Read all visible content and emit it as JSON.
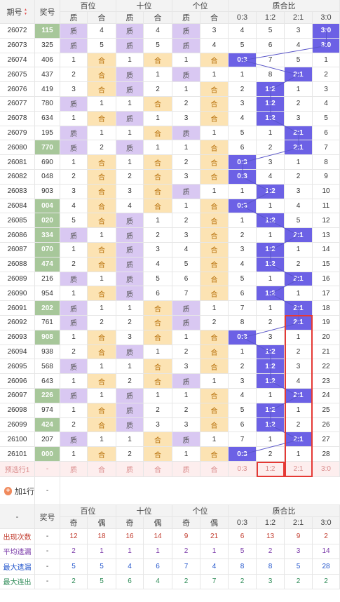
{
  "header": {
    "period": "期号",
    "draw": "奖号",
    "groups": [
      "百位",
      "十位",
      "个位",
      "质合比"
    ],
    "sub": [
      "质",
      "合",
      "质",
      "合",
      "质",
      "合",
      "0:3",
      "1:2",
      "2:1",
      "3:0"
    ]
  },
  "rows": [
    {
      "p": "26072",
      "d": "115",
      "dh": true,
      "c": [
        {
          "t": "质",
          "s": "zhi"
        },
        {
          "t": "4"
        },
        {
          "t": "质",
          "s": "zhi"
        },
        {
          "t": "4"
        },
        {
          "t": "质",
          "s": "zhi"
        },
        {
          "t": "3"
        },
        {
          "t": "4"
        },
        {
          "t": "5"
        },
        {
          "t": "3"
        },
        {
          "t": "3:0",
          "s": "hit"
        }
      ]
    },
    {
      "p": "26073",
      "d": "325",
      "dh": false,
      "c": [
        {
          "t": "质",
          "s": "zhi"
        },
        {
          "t": "5"
        },
        {
          "t": "质",
          "s": "zhi"
        },
        {
          "t": "5"
        },
        {
          "t": "质",
          "s": "zhi"
        },
        {
          "t": "4"
        },
        {
          "t": "5"
        },
        {
          "t": "6"
        },
        {
          "t": "4"
        },
        {
          "t": "3:0",
          "s": "hit"
        }
      ]
    },
    {
      "p": "26074",
      "d": "406",
      "dh": false,
      "c": [
        {
          "t": "1"
        },
        {
          "t": "合",
          "s": "he"
        },
        {
          "t": "1"
        },
        {
          "t": "合",
          "s": "he"
        },
        {
          "t": "1"
        },
        {
          "t": "合",
          "s": "he"
        },
        {
          "t": "0:3",
          "s": "hit"
        },
        {
          "t": "7"
        },
        {
          "t": "5"
        },
        {
          "t": "1"
        }
      ]
    },
    {
      "p": "26075",
      "d": "437",
      "dh": false,
      "c": [
        {
          "t": "2"
        },
        {
          "t": "合",
          "s": "he"
        },
        {
          "t": "质",
          "s": "zhi"
        },
        {
          "t": "1"
        },
        {
          "t": "质",
          "s": "zhi"
        },
        {
          "t": "1"
        },
        {
          "t": "1"
        },
        {
          "t": "8"
        },
        {
          "t": "2:1",
          "s": "hit"
        },
        {
          "t": "2"
        }
      ]
    },
    {
      "p": "26076",
      "d": "419",
      "dh": false,
      "c": [
        {
          "t": "3"
        },
        {
          "t": "合",
          "s": "he"
        },
        {
          "t": "质",
          "s": "zhi"
        },
        {
          "t": "2"
        },
        {
          "t": "1"
        },
        {
          "t": "合",
          "s": "he"
        },
        {
          "t": "2"
        },
        {
          "t": "1:2",
          "s": "hit"
        },
        {
          "t": "1"
        },
        {
          "t": "3"
        }
      ]
    },
    {
      "p": "26077",
      "d": "780",
      "dh": false,
      "c": [
        {
          "t": "质",
          "s": "zhi"
        },
        {
          "t": "1"
        },
        {
          "t": "1"
        },
        {
          "t": "合",
          "s": "he"
        },
        {
          "t": "2"
        },
        {
          "t": "合",
          "s": "he"
        },
        {
          "t": "3"
        },
        {
          "t": "1:2",
          "s": "hit"
        },
        {
          "t": "2"
        },
        {
          "t": "4"
        }
      ]
    },
    {
      "p": "26078",
      "d": "634",
      "dh": false,
      "c": [
        {
          "t": "1"
        },
        {
          "t": "合",
          "s": "he"
        },
        {
          "t": "质",
          "s": "zhi"
        },
        {
          "t": "1"
        },
        {
          "t": "3"
        },
        {
          "t": "合",
          "s": "he"
        },
        {
          "t": "4"
        },
        {
          "t": "1:2",
          "s": "hit"
        },
        {
          "t": "3"
        },
        {
          "t": "5"
        }
      ]
    },
    {
      "p": "26079",
      "d": "195",
      "dh": false,
      "c": [
        {
          "t": "质",
          "s": "zhi"
        },
        {
          "t": "1"
        },
        {
          "t": "1"
        },
        {
          "t": "合",
          "s": "he"
        },
        {
          "t": "质",
          "s": "zhi"
        },
        {
          "t": "1"
        },
        {
          "t": "5"
        },
        {
          "t": "1"
        },
        {
          "t": "2:1",
          "s": "hit"
        },
        {
          "t": "6"
        }
      ]
    },
    {
      "p": "26080",
      "d": "770",
      "dh": true,
      "c": [
        {
          "t": "质",
          "s": "zhi"
        },
        {
          "t": "2"
        },
        {
          "t": "质",
          "s": "zhi"
        },
        {
          "t": "1"
        },
        {
          "t": "1"
        },
        {
          "t": "合",
          "s": "he"
        },
        {
          "t": "6"
        },
        {
          "t": "2"
        },
        {
          "t": "2:1",
          "s": "hit"
        },
        {
          "t": "7"
        }
      ]
    },
    {
      "p": "26081",
      "d": "690",
      "dh": false,
      "c": [
        {
          "t": "1"
        },
        {
          "t": "合",
          "s": "he"
        },
        {
          "t": "1"
        },
        {
          "t": "合",
          "s": "he"
        },
        {
          "t": "2"
        },
        {
          "t": "合",
          "s": "he"
        },
        {
          "t": "0:3",
          "s": "hit"
        },
        {
          "t": "3"
        },
        {
          "t": "1"
        },
        {
          "t": "8"
        }
      ]
    },
    {
      "p": "26082",
      "d": "048",
      "dh": false,
      "c": [
        {
          "t": "2"
        },
        {
          "t": "合",
          "s": "he"
        },
        {
          "t": "2"
        },
        {
          "t": "合",
          "s": "he"
        },
        {
          "t": "3"
        },
        {
          "t": "合",
          "s": "he"
        },
        {
          "t": "0:3",
          "s": "hit"
        },
        {
          "t": "4"
        },
        {
          "t": "2"
        },
        {
          "t": "9"
        }
      ]
    },
    {
      "p": "26083",
      "d": "903",
      "dh": false,
      "c": [
        {
          "t": "3"
        },
        {
          "t": "合",
          "s": "he"
        },
        {
          "t": "3"
        },
        {
          "t": "合",
          "s": "he"
        },
        {
          "t": "质",
          "s": "zhi"
        },
        {
          "t": "1"
        },
        {
          "t": "1"
        },
        {
          "t": "1:2",
          "s": "hit"
        },
        {
          "t": "3"
        },
        {
          "t": "10"
        }
      ]
    },
    {
      "p": "26084",
      "d": "004",
      "dh": true,
      "c": [
        {
          "t": "4"
        },
        {
          "t": "合",
          "s": "he"
        },
        {
          "t": "4"
        },
        {
          "t": "合",
          "s": "he"
        },
        {
          "t": "1"
        },
        {
          "t": "合",
          "s": "he"
        },
        {
          "t": "0:3",
          "s": "hit"
        },
        {
          "t": "1"
        },
        {
          "t": "4"
        },
        {
          "t": "11"
        }
      ]
    },
    {
      "p": "26085",
      "d": "020",
      "dh": true,
      "c": [
        {
          "t": "5"
        },
        {
          "t": "合",
          "s": "he"
        },
        {
          "t": "质",
          "s": "zhi"
        },
        {
          "t": "1"
        },
        {
          "t": "2"
        },
        {
          "t": "合",
          "s": "he"
        },
        {
          "t": "1"
        },
        {
          "t": "1:2",
          "s": "hit"
        },
        {
          "t": "5"
        },
        {
          "t": "12"
        }
      ]
    },
    {
      "p": "26086",
      "d": "334",
      "dh": true,
      "c": [
        {
          "t": "质",
          "s": "zhi"
        },
        {
          "t": "1"
        },
        {
          "t": "质",
          "s": "zhi"
        },
        {
          "t": "2"
        },
        {
          "t": "3"
        },
        {
          "t": "合",
          "s": "he"
        },
        {
          "t": "2"
        },
        {
          "t": "1"
        },
        {
          "t": "2:1",
          "s": "hit"
        },
        {
          "t": "13"
        }
      ]
    },
    {
      "p": "26087",
      "d": "070",
      "dh": true,
      "c": [
        {
          "t": "1"
        },
        {
          "t": "合",
          "s": "he"
        },
        {
          "t": "质",
          "s": "zhi"
        },
        {
          "t": "3"
        },
        {
          "t": "4"
        },
        {
          "t": "合",
          "s": "he"
        },
        {
          "t": "3"
        },
        {
          "t": "1:2",
          "s": "hit"
        },
        {
          "t": "1"
        },
        {
          "t": "14"
        }
      ]
    },
    {
      "p": "26088",
      "d": "474",
      "dh": true,
      "c": [
        {
          "t": "2"
        },
        {
          "t": "合",
          "s": "he"
        },
        {
          "t": "质",
          "s": "zhi"
        },
        {
          "t": "4"
        },
        {
          "t": "5"
        },
        {
          "t": "合",
          "s": "he"
        },
        {
          "t": "4"
        },
        {
          "t": "1:2",
          "s": "hit"
        },
        {
          "t": "2"
        },
        {
          "t": "15"
        }
      ]
    },
    {
      "p": "26089",
      "d": "216",
      "dh": false,
      "c": [
        {
          "t": "质",
          "s": "zhi"
        },
        {
          "t": "1"
        },
        {
          "t": "质",
          "s": "zhi"
        },
        {
          "t": "5"
        },
        {
          "t": "6"
        },
        {
          "t": "合",
          "s": "he"
        },
        {
          "t": "5"
        },
        {
          "t": "1"
        },
        {
          "t": "2:1",
          "s": "hit"
        },
        {
          "t": "16"
        }
      ]
    },
    {
      "p": "26090",
      "d": "954",
      "dh": false,
      "c": [
        {
          "t": "1"
        },
        {
          "t": "合",
          "s": "he"
        },
        {
          "t": "质",
          "s": "zhi"
        },
        {
          "t": "6"
        },
        {
          "t": "7"
        },
        {
          "t": "合",
          "s": "he"
        },
        {
          "t": "6"
        },
        {
          "t": "1:2",
          "s": "hit"
        },
        {
          "t": "1"
        },
        {
          "t": "17"
        }
      ]
    },
    {
      "p": "26091",
      "d": "202",
      "dh": true,
      "c": [
        {
          "t": "质",
          "s": "zhi"
        },
        {
          "t": "1"
        },
        {
          "t": "1"
        },
        {
          "t": "合",
          "s": "he"
        },
        {
          "t": "质",
          "s": "zhi"
        },
        {
          "t": "1"
        },
        {
          "t": "7"
        },
        {
          "t": "1"
        },
        {
          "t": "2:1",
          "s": "hit"
        },
        {
          "t": "18"
        }
      ]
    },
    {
      "p": "26092",
      "d": "761",
      "dh": false,
      "c": [
        {
          "t": "质",
          "s": "zhi"
        },
        {
          "t": "2"
        },
        {
          "t": "2"
        },
        {
          "t": "合",
          "s": "he"
        },
        {
          "t": "质",
          "s": "zhi"
        },
        {
          "t": "2"
        },
        {
          "t": "8"
        },
        {
          "t": "2"
        },
        {
          "t": "2:1",
          "s": "hit"
        },
        {
          "t": "19"
        }
      ]
    },
    {
      "p": "26093",
      "d": "908",
      "dh": true,
      "c": [
        {
          "t": "1"
        },
        {
          "t": "合",
          "s": "he"
        },
        {
          "t": "3"
        },
        {
          "t": "合",
          "s": "he"
        },
        {
          "t": "1"
        },
        {
          "t": "合",
          "s": "he"
        },
        {
          "t": "0:3",
          "s": "hit"
        },
        {
          "t": "3"
        },
        {
          "t": "1"
        },
        {
          "t": "20"
        }
      ]
    },
    {
      "p": "26094",
      "d": "938",
      "dh": false,
      "c": [
        {
          "t": "2"
        },
        {
          "t": "合",
          "s": "he"
        },
        {
          "t": "质",
          "s": "zhi"
        },
        {
          "t": "1"
        },
        {
          "t": "2"
        },
        {
          "t": "合",
          "s": "he"
        },
        {
          "t": "1"
        },
        {
          "t": "1:2",
          "s": "hit"
        },
        {
          "t": "2"
        },
        {
          "t": "21"
        }
      ]
    },
    {
      "p": "26095",
      "d": "568",
      "dh": false,
      "c": [
        {
          "t": "质",
          "s": "zhi"
        },
        {
          "t": "1"
        },
        {
          "t": "1"
        },
        {
          "t": "合",
          "s": "he"
        },
        {
          "t": "3"
        },
        {
          "t": "合",
          "s": "he"
        },
        {
          "t": "2"
        },
        {
          "t": "1:2",
          "s": "hit"
        },
        {
          "t": "3"
        },
        {
          "t": "22"
        }
      ]
    },
    {
      "p": "26096",
      "d": "643",
      "dh": false,
      "c": [
        {
          "t": "1"
        },
        {
          "t": "合",
          "s": "he"
        },
        {
          "t": "2"
        },
        {
          "t": "合",
          "s": "he"
        },
        {
          "t": "质",
          "s": "zhi"
        },
        {
          "t": "1"
        },
        {
          "t": "3"
        },
        {
          "t": "1:2",
          "s": "hit"
        },
        {
          "t": "4"
        },
        {
          "t": "23"
        }
      ]
    },
    {
      "p": "26097",
      "d": "226",
      "dh": true,
      "c": [
        {
          "t": "质",
          "s": "zhi"
        },
        {
          "t": "1"
        },
        {
          "t": "质",
          "s": "zhi"
        },
        {
          "t": "1"
        },
        {
          "t": "1"
        },
        {
          "t": "合",
          "s": "he"
        },
        {
          "t": "4"
        },
        {
          "t": "1"
        },
        {
          "t": "2:1",
          "s": "hit"
        },
        {
          "t": "24"
        }
      ]
    },
    {
      "p": "26098",
      "d": "974",
      "dh": false,
      "c": [
        {
          "t": "1"
        },
        {
          "t": "合",
          "s": "he"
        },
        {
          "t": "质",
          "s": "zhi"
        },
        {
          "t": "2"
        },
        {
          "t": "2"
        },
        {
          "t": "合",
          "s": "he"
        },
        {
          "t": "5"
        },
        {
          "t": "1:2",
          "s": "hit"
        },
        {
          "t": "1"
        },
        {
          "t": "25"
        }
      ]
    },
    {
      "p": "26099",
      "d": "424",
      "dh": true,
      "c": [
        {
          "t": "2"
        },
        {
          "t": "合",
          "s": "he"
        },
        {
          "t": "质",
          "s": "zhi"
        },
        {
          "t": "3"
        },
        {
          "t": "3"
        },
        {
          "t": "合",
          "s": "he"
        },
        {
          "t": "6"
        },
        {
          "t": "1:2",
          "s": "hit"
        },
        {
          "t": "2"
        },
        {
          "t": "26"
        }
      ]
    },
    {
      "p": "26100",
      "d": "207",
      "dh": false,
      "c": [
        {
          "t": "质",
          "s": "zhi"
        },
        {
          "t": "1"
        },
        {
          "t": "1"
        },
        {
          "t": "合",
          "s": "he"
        },
        {
          "t": "质",
          "s": "zhi"
        },
        {
          "t": "1"
        },
        {
          "t": "7"
        },
        {
          "t": "1"
        },
        {
          "t": "2:1",
          "s": "hit"
        },
        {
          "t": "27"
        }
      ]
    },
    {
      "p": "26101",
      "d": "000",
      "dh": true,
      "c": [
        {
          "t": "1"
        },
        {
          "t": "合",
          "s": "he"
        },
        {
          "t": "2"
        },
        {
          "t": "合",
          "s": "he"
        },
        {
          "t": "1"
        },
        {
          "t": "合",
          "s": "he"
        },
        {
          "t": "0:3",
          "s": "hit"
        },
        {
          "t": "2"
        },
        {
          "t": "1"
        },
        {
          "t": "28"
        }
      ]
    }
  ],
  "preselect": {
    "label": "预选行1",
    "draw": "-",
    "cells": [
      "质",
      "合",
      "质",
      "合",
      "质",
      "合",
      "0:3",
      "1:2",
      "2:1",
      "3:0"
    ]
  },
  "add_row": {
    "label": "加1行",
    "value": "-"
  },
  "stats_header": {
    "period": "-",
    "draw": "奖号",
    "groups": [
      "百位",
      "十位",
      "个位",
      "质合比"
    ],
    "sub": [
      "奇",
      "偶",
      "奇",
      "偶",
      "奇",
      "偶",
      "0:3",
      "1:2",
      "2:1",
      "3:0"
    ]
  },
  "stats": [
    {
      "label": "出现次数",
      "draw": "-",
      "cls": "stat-red",
      "v": [
        "12",
        "18",
        "16",
        "14",
        "9",
        "21",
        "6",
        "13",
        "9",
        "2"
      ]
    },
    {
      "label": "平均遗漏",
      "draw": "-",
      "cls": "stat-purple",
      "v": [
        "2",
        "1",
        "1",
        "1",
        "2",
        "1",
        "5",
        "2",
        "3",
        "14"
      ]
    },
    {
      "label": "最大遗漏",
      "draw": "-",
      "cls": "stat-blue",
      "v": [
        "5",
        "5",
        "4",
        "6",
        "7",
        "4",
        "8",
        "8",
        "5",
        "28"
      ]
    },
    {
      "label": "最大连出",
      "draw": "-",
      "cls": "stat-green",
      "v": [
        "2",
        "5",
        "6",
        "4",
        "2",
        "7",
        "2",
        "3",
        "2",
        "2"
      ]
    }
  ],
  "colors": {
    "zhi": "#d9c8f2",
    "he": "#fce3b3",
    "hit": "#6c61e5",
    "draw_hl": "#a7c79a",
    "highlight_box": "#e53935",
    "line": "#5a56c9"
  }
}
